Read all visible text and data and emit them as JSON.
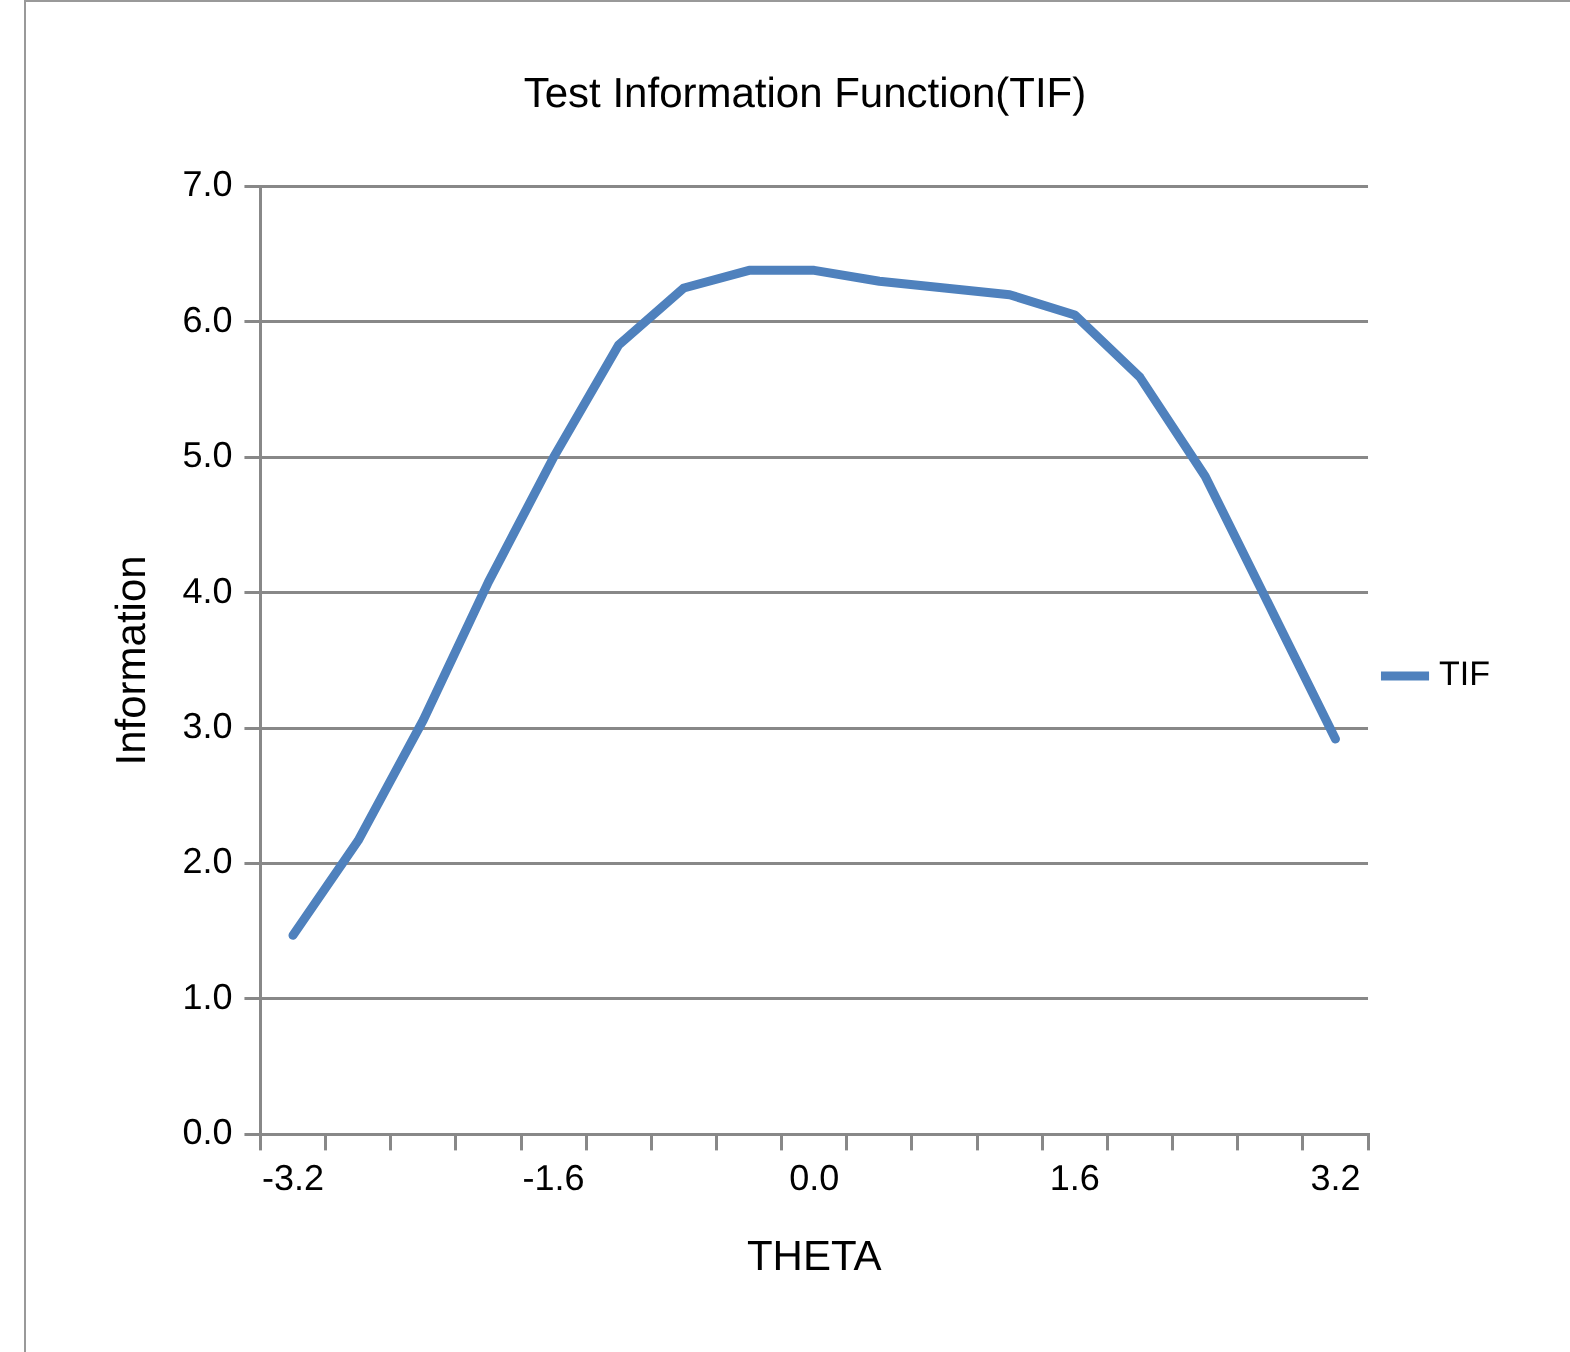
{
  "chart_data": {
    "type": "line",
    "title": "Test Information Function(TIF)",
    "xlabel": "THETA",
    "ylabel": "Information",
    "categories": [
      "-3.2",
      null,
      null,
      null,
      "-1.6",
      null,
      null,
      null,
      "0.0",
      null,
      null,
      null,
      "1.6",
      null,
      null,
      null,
      "3.2"
    ],
    "series": [
      {
        "name": "TIF",
        "color": "#4f81bd",
        "values": [
          1.47,
          2.17,
          3.06,
          4.08,
          5.0,
          5.83,
          6.25,
          6.38,
          6.38,
          6.3,
          6.25,
          6.2,
          6.05,
          5.59,
          4.86,
          3.89,
          2.92
        ]
      }
    ],
    "ylim": [
      0,
      7
    ],
    "yticks": [
      {
        "value": 0,
        "label": "0.0"
      },
      {
        "value": 1,
        "label": "1.0"
      },
      {
        "value": 2,
        "label": "2.0"
      },
      {
        "value": 3,
        "label": "3.0"
      },
      {
        "value": 4,
        "label": "4.0"
      },
      {
        "value": 5,
        "label": "5.0"
      },
      {
        "value": 6,
        "label": "6.0"
      },
      {
        "value": 7,
        "label": "7.0"
      }
    ],
    "grid": "y",
    "legend": "right",
    "marker": "none",
    "line_style": "solid"
  }
}
